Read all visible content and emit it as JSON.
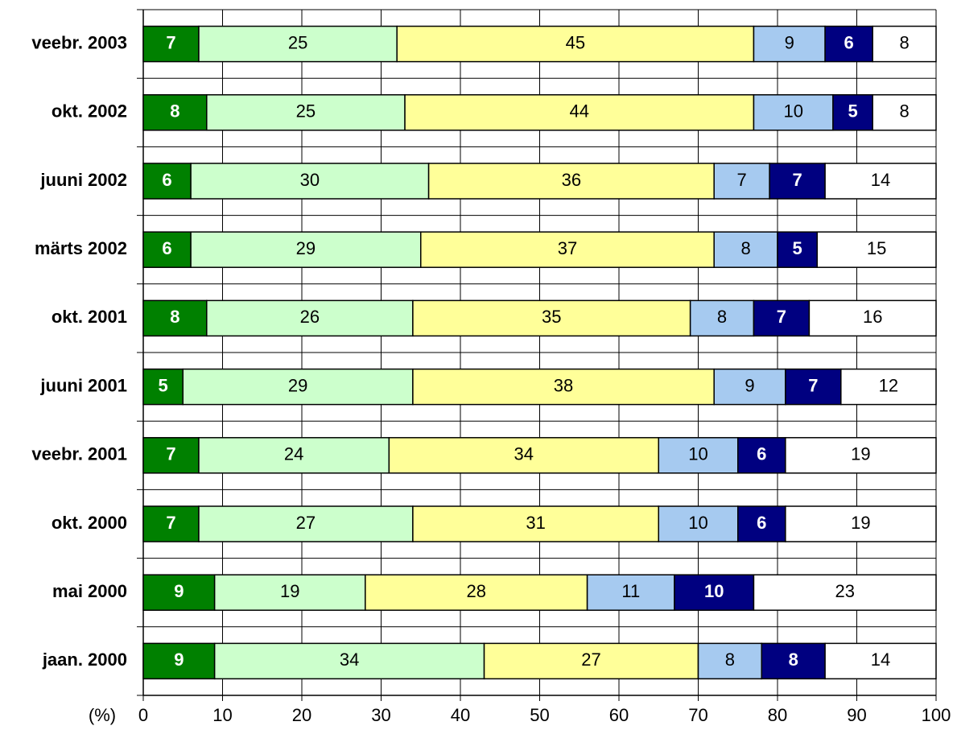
{
  "chart_data": {
    "type": "stacked_barh",
    "x_label": "(%)",
    "categories": [
      "veebr. 2003",
      "okt. 2002",
      "juuni 2002",
      "märts 2002",
      "okt. 2001",
      "juuni 2001",
      "veebr. 2001",
      "okt. 2000",
      "mai 2000",
      "jaan. 2000"
    ],
    "series": [
      {
        "color": "#008000",
        "values": [
          7,
          8,
          6,
          6,
          8,
          5,
          7,
          7,
          9,
          9
        ]
      },
      {
        "color": "#ccffcc",
        "values": [
          25,
          25,
          30,
          29,
          26,
          29,
          24,
          27,
          19,
          34
        ]
      },
      {
        "color": "#ffff99",
        "values": [
          45,
          44,
          36,
          37,
          35,
          38,
          34,
          31,
          28,
          27
        ]
      },
      {
        "color": "#a6caf0",
        "values": [
          9,
          10,
          7,
          8,
          8,
          9,
          10,
          10,
          11,
          8
        ]
      },
      {
        "color": "#000080",
        "values": [
          6,
          5,
          7,
          5,
          7,
          7,
          6,
          6,
          10,
          8
        ]
      },
      {
        "color": "#ffffff",
        "values": [
          8,
          8,
          14,
          15,
          16,
          12,
          19,
          19,
          23,
          14
        ]
      }
    ],
    "xlim": [
      0,
      100
    ],
    "xticks": [
      0,
      10,
      20,
      30,
      40,
      50,
      60,
      70,
      80,
      90,
      100
    ],
    "grid": true
  }
}
